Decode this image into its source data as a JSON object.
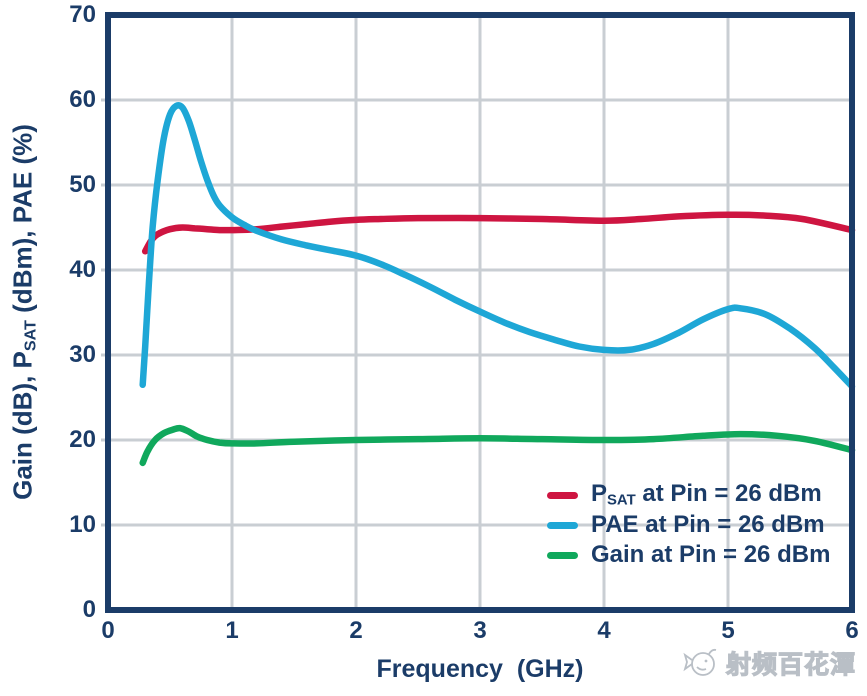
{
  "chart_data": {
    "type": "line",
    "xlabel": "Frequency  (GHz)",
    "ylabel_parts": {
      "pre": "Gain (dB), P",
      "sub": "SAT",
      "post": " (dBm), PAE (%)"
    },
    "xlim": [
      0,
      6
    ],
    "ylim": [
      0,
      70
    ],
    "x_ticks": [
      0,
      1,
      2,
      3,
      4,
      5,
      6
    ],
    "y_ticks": [
      0,
      10,
      20,
      30,
      40,
      50,
      60,
      70
    ],
    "grid": true,
    "legend_position": "lower right",
    "series": [
      {
        "name": "PSAT",
        "label_pre": "P",
        "label_sub": "SAT",
        "label_post": " at Pin = 26 dBm",
        "color": "#ce1541",
        "points": [
          [
            0.3,
            42.2
          ],
          [
            0.35,
            43.5
          ],
          [
            0.4,
            44.2
          ],
          [
            0.5,
            44.8
          ],
          [
            0.6,
            45.0
          ],
          [
            0.7,
            44.9
          ],
          [
            0.8,
            44.8
          ],
          [
            0.9,
            44.7
          ],
          [
            1.0,
            44.7
          ],
          [
            1.2,
            44.8
          ],
          [
            1.4,
            45.1
          ],
          [
            1.6,
            45.4
          ],
          [
            1.8,
            45.7
          ],
          [
            2.0,
            45.9
          ],
          [
            2.2,
            46.0
          ],
          [
            2.5,
            46.1
          ],
          [
            3.0,
            46.1
          ],
          [
            3.5,
            46.0
          ],
          [
            4.0,
            45.8
          ],
          [
            4.3,
            46.0
          ],
          [
            4.6,
            46.3
          ],
          [
            5.0,
            46.5
          ],
          [
            5.3,
            46.4
          ],
          [
            5.6,
            46.0
          ],
          [
            6.0,
            44.7
          ]
        ]
      },
      {
        "name": "PAE",
        "label_pre": "PAE",
        "label_sub": "",
        "label_post": " at Pin = 26 dBm",
        "color": "#1ea7d6",
        "points": [
          [
            0.28,
            26.5
          ],
          [
            0.3,
            31.0
          ],
          [
            0.33,
            38.5
          ],
          [
            0.36,
            45.0
          ],
          [
            0.4,
            50.5
          ],
          [
            0.45,
            55.5
          ],
          [
            0.5,
            58.3
          ],
          [
            0.55,
            59.3
          ],
          [
            0.6,
            59.1
          ],
          [
            0.65,
            57.6
          ],
          [
            0.7,
            55.3
          ],
          [
            0.75,
            52.8
          ],
          [
            0.8,
            50.6
          ],
          [
            0.85,
            48.8
          ],
          [
            0.9,
            47.6
          ],
          [
            1.0,
            46.2
          ],
          [
            1.1,
            45.3
          ],
          [
            1.2,
            44.6
          ],
          [
            1.4,
            43.6
          ],
          [
            1.6,
            42.9
          ],
          [
            1.8,
            42.3
          ],
          [
            2.0,
            41.7
          ],
          [
            2.2,
            40.7
          ],
          [
            2.4,
            39.4
          ],
          [
            2.6,
            38.0
          ],
          [
            2.8,
            36.5
          ],
          [
            3.0,
            35.1
          ],
          [
            3.2,
            33.8
          ],
          [
            3.4,
            32.7
          ],
          [
            3.6,
            31.8
          ],
          [
            3.8,
            31.0
          ],
          [
            4.0,
            30.6
          ],
          [
            4.2,
            30.6
          ],
          [
            4.4,
            31.3
          ],
          [
            4.6,
            32.6
          ],
          [
            4.8,
            34.2
          ],
          [
            5.0,
            35.4
          ],
          [
            5.1,
            35.5
          ],
          [
            5.3,
            34.8
          ],
          [
            5.5,
            33.1
          ],
          [
            5.7,
            30.8
          ],
          [
            5.85,
            28.6
          ],
          [
            6.0,
            26.3
          ]
        ]
      },
      {
        "name": "Gain",
        "label_pre": "Gain",
        "label_sub": "",
        "label_post": " at Pin = 26 dBm",
        "color": "#10a85c",
        "points": [
          [
            0.28,
            17.3
          ],
          [
            0.32,
            18.7
          ],
          [
            0.38,
            20.0
          ],
          [
            0.45,
            20.8
          ],
          [
            0.52,
            21.2
          ],
          [
            0.58,
            21.4
          ],
          [
            0.65,
            21.0
          ],
          [
            0.72,
            20.4
          ],
          [
            0.8,
            20.0
          ],
          [
            0.9,
            19.7
          ],
          [
            1.0,
            19.6
          ],
          [
            1.2,
            19.6
          ],
          [
            1.5,
            19.8
          ],
          [
            2.0,
            20.0
          ],
          [
            2.5,
            20.1
          ],
          [
            3.0,
            20.2
          ],
          [
            3.5,
            20.1
          ],
          [
            4.0,
            20.0
          ],
          [
            4.4,
            20.1
          ],
          [
            4.8,
            20.5
          ],
          [
            5.1,
            20.7
          ],
          [
            5.4,
            20.5
          ],
          [
            5.7,
            19.9
          ],
          [
            6.0,
            18.8
          ]
        ]
      }
    ]
  },
  "colors": {
    "axis_frame": "#1b3c68",
    "grid": "#c9ced3",
    "text": "#1b3c68",
    "watermark": "#b9bfc6"
  },
  "watermark": {
    "icon": "fish-logo-icon",
    "text": "射频百花潭"
  }
}
